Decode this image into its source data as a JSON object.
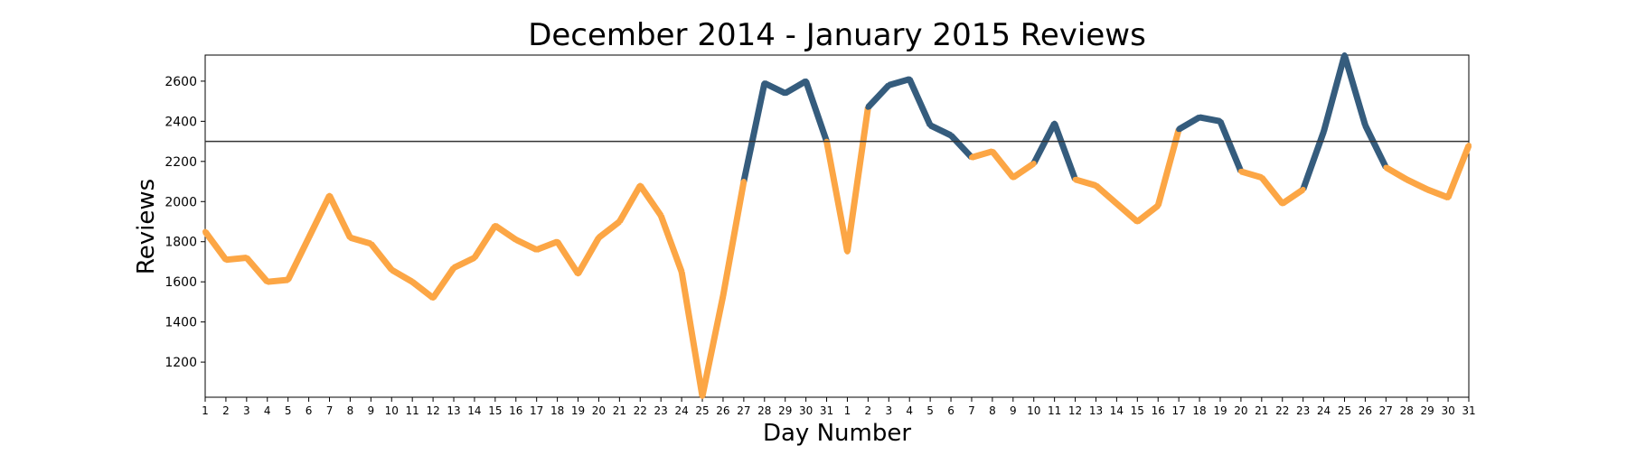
{
  "chart_data": {
    "type": "line",
    "title": "December 2014 - January 2015 Reviews",
    "xlabel": "Day Number",
    "ylabel": "Reviews",
    "ylim": [
      1025,
      2730
    ],
    "yticks": [
      1200,
      1400,
      1600,
      1800,
      2000,
      2200,
      2400,
      2600
    ],
    "x": [
      "1",
      "2",
      "3",
      "4",
      "5",
      "6",
      "7",
      "8",
      "9",
      "10",
      "11",
      "12",
      "13",
      "14",
      "15",
      "16",
      "17",
      "18",
      "19",
      "20",
      "21",
      "22",
      "23",
      "24",
      "25",
      "26",
      "27",
      "28",
      "29",
      "30",
      "31",
      "1",
      "2",
      "3",
      "4",
      "5",
      "6",
      "7",
      "8",
      "9",
      "10",
      "11",
      "12",
      "13",
      "14",
      "15",
      "16",
      "17",
      "18",
      "19",
      "20",
      "21",
      "22",
      "23",
      "24",
      "25",
      "26",
      "27",
      "28",
      "29",
      "30",
      "31"
    ],
    "values": [
      1850,
      1710,
      1720,
      1600,
      1610,
      1820,
      2030,
      1820,
      1790,
      1660,
      1600,
      1520,
      1670,
      1720,
      1880,
      1810,
      1760,
      1800,
      1640,
      1820,
      1900,
      2080,
      1930,
      1650,
      1030,
      1530,
      2100,
      2590,
      2540,
      2600,
      2300,
      1750,
      2470,
      2580,
      2610,
      2380,
      2330,
      2220,
      2250,
      2120,
      2190,
      2390,
      2110,
      2080,
      1990,
      1900,
      1980,
      2360,
      2420,
      2400,
      2150,
      2120,
      1990,
      2060,
      2350,
      2730,
      2380,
      2170,
      2110,
      2060,
      2020,
      2280
    ],
    "threshold": 2300,
    "series": [
      {
        "name": "",
        "color": "#fca645",
        "segment": "below threshold"
      },
      {
        "name": "",
        "color": "#355c7d",
        "segment": "above threshold"
      }
    ],
    "threshold_line_color": "#333333",
    "grid": false,
    "legend": "none"
  }
}
